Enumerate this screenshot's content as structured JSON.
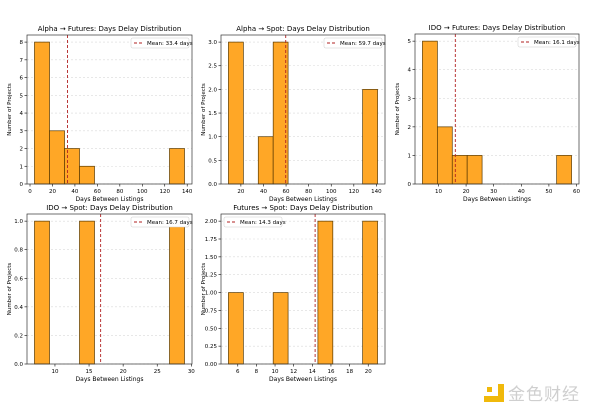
{
  "colors": {
    "bar_fill": "#ffa726",
    "bar_edge": "#5a3a00",
    "mean_line": "#b22222",
    "grid": "#d9d9d9"
  },
  "chart_data": [
    {
      "type": "bar",
      "title": "Alpha → Futures: Days Delay Distribution",
      "xlabel": "Days Between Listings",
      "ylabel": "Number of Projects",
      "bin_range": [
        4,
        137.6
      ],
      "counts": [
        8,
        3,
        2,
        1,
        0,
        0,
        0,
        0,
        0,
        2
      ],
      "mean": 33.4,
      "legend": "Mean: 33.4 days",
      "legend_position": "upper right",
      "xticks": [
        0,
        20,
        40,
        60,
        80,
        100,
        120,
        140
      ],
      "yticks": [
        0,
        1,
        2,
        3,
        4,
        5,
        6,
        7,
        8
      ],
      "ytick_labels": [
        "0",
        "1",
        "2",
        "3",
        "4",
        "5",
        "6",
        "7",
        "8"
      ],
      "grid": "y"
    },
    {
      "type": "bar",
      "title": "Alpha → Spot: Days Delay Distribution",
      "xlabel": "Days Between Listings",
      "ylabel": "Number of Projects",
      "bin_range": [
        9,
        141
      ],
      "counts": [
        3,
        0,
        1,
        3,
        0,
        0,
        0,
        0,
        0,
        2
      ],
      "mean": 59.7,
      "legend": "Mean: 59.7 days",
      "legend_position": "upper right",
      "xticks": [
        20,
        40,
        60,
        80,
        100,
        120,
        140
      ],
      "yticks": [
        0,
        0.5,
        1,
        1.5,
        2,
        2.5,
        3
      ],
      "ytick_labels": [
        "0.0",
        "0.5",
        "1.0",
        "1.5",
        "2.0",
        "2.5",
        "3.0"
      ],
      "grid": "y"
    },
    {
      "type": "bar",
      "title": "IDO → Futures: Days Delay Distribution",
      "xlabel": "Days Between Listings",
      "ylabel": "Number of Projects",
      "bin_range": [
        4.2,
        58.2
      ],
      "counts": [
        5,
        2,
        1,
        1,
        0,
        0,
        0,
        0,
        0,
        1
      ],
      "mean": 16.1,
      "legend": "Mean: 16.1 days",
      "legend_position": "upper right",
      "xticks": [
        10,
        20,
        30,
        40,
        50,
        60
      ],
      "yticks": [
        0,
        1,
        2,
        3,
        4,
        5
      ],
      "ytick_labels": [
        "0",
        "1",
        "2",
        "3",
        "4",
        "5"
      ],
      "grid": "y"
    },
    {
      "type": "bar",
      "title": "IDO → Spot: Days Delay Distribution",
      "xlabel": "Days Between Listings",
      "ylabel": "Number of Projects",
      "bin_range": [
        7,
        29
      ],
      "counts": [
        1,
        0,
        0,
        1,
        0,
        0,
        0,
        0,
        0,
        1
      ],
      "mean": 16.7,
      "legend": "Mean: 16.7 days",
      "legend_position": "upper right",
      "xticks": [
        10,
        15,
        20,
        25,
        30
      ],
      "yticks": [
        0,
        0.2,
        0.4,
        0.6,
        0.8,
        1.0
      ],
      "ytick_labels": [
        "0.0",
        "0.2",
        "0.4",
        "0.6",
        "0.8",
        "1.0"
      ],
      "grid": "y"
    },
    {
      "type": "bar",
      "title": "Futures → Spot: Days Delay Distribution",
      "xlabel": "Days Between Listings",
      "ylabel": "Number of Projects",
      "bin_range": [
        5,
        21
      ],
      "counts": [
        1,
        0,
        0,
        1,
        0,
        0,
        2,
        0,
        0,
        2
      ],
      "mean": 14.3,
      "legend": "Mean: 14.3 days",
      "legend_position": "upper left",
      "xticks": [
        6,
        8,
        10,
        12,
        14,
        16,
        18,
        20
      ],
      "yticks": [
        0,
        0.25,
        0.5,
        0.75,
        1,
        1.25,
        1.5,
        1.75,
        2
      ],
      "ytick_labels": [
        "0.00",
        "0.25",
        "0.50",
        "0.75",
        "1.00",
        "1.25",
        "1.50",
        "1.75",
        "2.00"
      ],
      "grid": "y"
    }
  ],
  "watermark": {
    "text": "金色财经"
  }
}
